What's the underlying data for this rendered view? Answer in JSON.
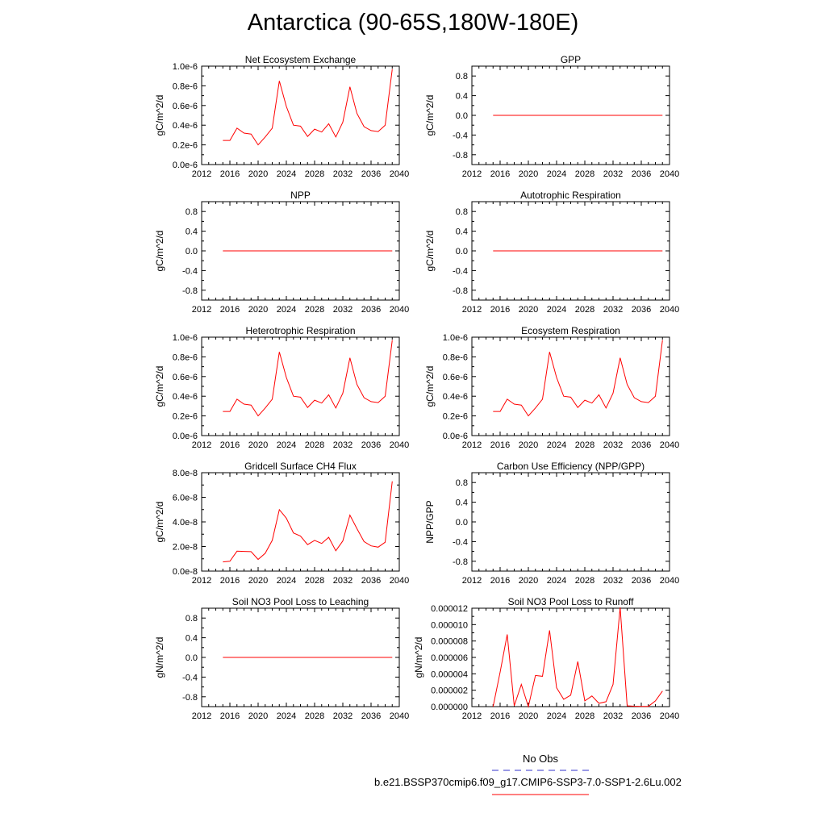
{
  "title": "Antarctica (90-65S,180W-180E)",
  "legend": {
    "obs_label": "No Obs",
    "obs_color": "#3333cc",
    "model_label": "b.e21.BSSP370cmip6.f09_g17.CMIP6-SSP3-7.0-SSP1-2.6Lu.002",
    "model_color": "#ff0000"
  },
  "chart_data": [
    {
      "type": "line",
      "title": "Net Ecosystem Exchange",
      "ylabel": "gC/m^2/d",
      "xlim": [
        2012,
        2040
      ],
      "xticks": [
        2012,
        2016,
        2020,
        2024,
        2028,
        2032,
        2036,
        2040
      ],
      "ylim": [
        0,
        1e-06
      ],
      "yticks": [
        0,
        2e-07,
        4e-07,
        6e-07,
        8e-07,
        1e-06
      ],
      "ytick_labels": [
        "0.0e-6",
        "0.2e-6",
        "0.4e-6",
        "0.6e-6",
        "0.8e-6",
        "1.0e-6"
      ],
      "x": [
        2015,
        2016,
        2017,
        2018,
        2019,
        2020,
        2021,
        2022,
        2023,
        2024,
        2025,
        2026,
        2027,
        2028,
        2029,
        2030,
        2031,
        2032,
        2033,
        2034,
        2035,
        2036,
        2037,
        2038,
        2039
      ],
      "values": [
        2.45e-07,
        2.45e-07,
        3.7e-07,
        3.2e-07,
        3.1e-07,
        2e-07,
        2.8e-07,
        3.7e-07,
        8.5e-07,
        5.9e-07,
        4e-07,
        3.9e-07,
        2.85e-07,
        3.6e-07,
        3.3e-07,
        4.15e-07,
        2.8e-07,
        4.3e-07,
        7.9e-07,
        5.2e-07,
        3.85e-07,
        3.45e-07,
        3.35e-07,
        4e-07,
        9.7e-07
      ]
    },
    {
      "type": "line",
      "title": "GPP",
      "ylabel": "gC/m^2/d",
      "xlim": [
        2012,
        2040
      ],
      "xticks": [
        2012,
        2016,
        2020,
        2024,
        2028,
        2032,
        2036,
        2040
      ],
      "ylim": [
        -1.0,
        1.0
      ],
      "yticks": [
        -0.8,
        -0.4,
        0.0,
        0.4,
        0.8
      ],
      "ytick_labels": [
        "-0.8",
        "-0.4",
        "0.0",
        "0.4",
        "0.8"
      ],
      "x": [
        2015,
        2016,
        2017,
        2018,
        2019,
        2020,
        2021,
        2022,
        2023,
        2024,
        2025,
        2026,
        2027,
        2028,
        2029,
        2030,
        2031,
        2032,
        2033,
        2034,
        2035,
        2036,
        2037,
        2038,
        2039
      ],
      "values": [
        0,
        0,
        0,
        0,
        0,
        0,
        0,
        0,
        0,
        0,
        0,
        0,
        0,
        0,
        0,
        0,
        0,
        0,
        0,
        0,
        0,
        0,
        0,
        0,
        0
      ]
    },
    {
      "type": "line",
      "title": "NPP",
      "ylabel": "gC/m^2/d",
      "xlim": [
        2012,
        2040
      ],
      "xticks": [
        2012,
        2016,
        2020,
        2024,
        2028,
        2032,
        2036,
        2040
      ],
      "ylim": [
        -1.0,
        1.0
      ],
      "yticks": [
        -0.8,
        -0.4,
        0.0,
        0.4,
        0.8
      ],
      "ytick_labels": [
        "-0.8",
        "-0.4",
        "0.0",
        "0.4",
        "0.8"
      ],
      "x": [
        2015,
        2016,
        2017,
        2018,
        2019,
        2020,
        2021,
        2022,
        2023,
        2024,
        2025,
        2026,
        2027,
        2028,
        2029,
        2030,
        2031,
        2032,
        2033,
        2034,
        2035,
        2036,
        2037,
        2038,
        2039
      ],
      "values": [
        0,
        0,
        0,
        0,
        0,
        0,
        0,
        0,
        0,
        0,
        0,
        0,
        0,
        0,
        0,
        0,
        0,
        0,
        0,
        0,
        0,
        0,
        0,
        0,
        0
      ]
    },
    {
      "type": "line",
      "title": "Autotrophic Respiration",
      "ylabel": "gC/m^2/d",
      "xlim": [
        2012,
        2040
      ],
      "xticks": [
        2012,
        2016,
        2020,
        2024,
        2028,
        2032,
        2036,
        2040
      ],
      "ylim": [
        -1.0,
        1.0
      ],
      "yticks": [
        -0.8,
        -0.4,
        0.0,
        0.4,
        0.8
      ],
      "ytick_labels": [
        "-0.8",
        "-0.4",
        "0.0",
        "0.4",
        "0.8"
      ],
      "x": [
        2015,
        2016,
        2017,
        2018,
        2019,
        2020,
        2021,
        2022,
        2023,
        2024,
        2025,
        2026,
        2027,
        2028,
        2029,
        2030,
        2031,
        2032,
        2033,
        2034,
        2035,
        2036,
        2037,
        2038,
        2039
      ],
      "values": [
        0,
        0,
        0,
        0,
        0,
        0,
        0,
        0,
        0,
        0,
        0,
        0,
        0,
        0,
        0,
        0,
        0,
        0,
        0,
        0,
        0,
        0,
        0,
        0,
        0
      ]
    },
    {
      "type": "line",
      "title": "Heterotrophic Respiration",
      "ylabel": "gC/m^2/d",
      "xlim": [
        2012,
        2040
      ],
      "xticks": [
        2012,
        2016,
        2020,
        2024,
        2028,
        2032,
        2036,
        2040
      ],
      "ylim": [
        0,
        1e-06
      ],
      "yticks": [
        0,
        2e-07,
        4e-07,
        6e-07,
        8e-07,
        1e-06
      ],
      "ytick_labels": [
        "0.0e-6",
        "0.2e-6",
        "0.4e-6",
        "0.6e-6",
        "0.8e-6",
        "1.0e-6"
      ],
      "x": [
        2015,
        2016,
        2017,
        2018,
        2019,
        2020,
        2021,
        2022,
        2023,
        2024,
        2025,
        2026,
        2027,
        2028,
        2029,
        2030,
        2031,
        2032,
        2033,
        2034,
        2035,
        2036,
        2037,
        2038,
        2039
      ],
      "values": [
        2.45e-07,
        2.45e-07,
        3.7e-07,
        3.2e-07,
        3.1e-07,
        2e-07,
        2.8e-07,
        3.7e-07,
        8.5e-07,
        5.9e-07,
        4e-07,
        3.9e-07,
        2.85e-07,
        3.6e-07,
        3.3e-07,
        4.15e-07,
        2.8e-07,
        4.3e-07,
        7.9e-07,
        5.2e-07,
        3.85e-07,
        3.45e-07,
        3.35e-07,
        4e-07,
        9.7e-07
      ]
    },
    {
      "type": "line",
      "title": "Ecosystem Respiration",
      "ylabel": "gC/m^2/d",
      "xlim": [
        2012,
        2040
      ],
      "xticks": [
        2012,
        2016,
        2020,
        2024,
        2028,
        2032,
        2036,
        2040
      ],
      "ylim": [
        0,
        1e-06
      ],
      "yticks": [
        0,
        2e-07,
        4e-07,
        6e-07,
        8e-07,
        1e-06
      ],
      "ytick_labels": [
        "0.0e-6",
        "0.2e-6",
        "0.4e-6",
        "0.6e-6",
        "0.8e-6",
        "1.0e-6"
      ],
      "x": [
        2015,
        2016,
        2017,
        2018,
        2019,
        2020,
        2021,
        2022,
        2023,
        2024,
        2025,
        2026,
        2027,
        2028,
        2029,
        2030,
        2031,
        2032,
        2033,
        2034,
        2035,
        2036,
        2037,
        2038,
        2039
      ],
      "values": [
        2.45e-07,
        2.45e-07,
        3.7e-07,
        3.2e-07,
        3.1e-07,
        2e-07,
        2.8e-07,
        3.7e-07,
        8.5e-07,
        5.9e-07,
        4e-07,
        3.9e-07,
        2.85e-07,
        3.6e-07,
        3.3e-07,
        4.15e-07,
        2.8e-07,
        4.3e-07,
        7.9e-07,
        5.2e-07,
        3.85e-07,
        3.45e-07,
        3.35e-07,
        4e-07,
        9.7e-07
      ]
    },
    {
      "type": "line",
      "title": "Gridcell Surface CH4 Flux",
      "ylabel": "gC/m^2/d",
      "xlim": [
        2012,
        2040
      ],
      "xticks": [
        2012,
        2016,
        2020,
        2024,
        2028,
        2032,
        2036,
        2040
      ],
      "ylim": [
        0,
        8e-08
      ],
      "yticks": [
        0,
        2e-08,
        4e-08,
        6e-08,
        8e-08
      ],
      "ytick_labels": [
        "0.0e-8",
        "2.0e-8",
        "4.0e-8",
        "6.0e-8",
        "8.0e-8"
      ],
      "x": [
        2015,
        2016,
        2017,
        2018,
        2019,
        2020,
        2021,
        2022,
        2023,
        2024,
        2025,
        2026,
        2027,
        2028,
        2029,
        2030,
        2031,
        2032,
        2033,
        2034,
        2035,
        2036,
        2037,
        2038,
        2039
      ],
      "values": [
        7.5e-09,
        8e-09,
        1.62e-08,
        1.6e-08,
        1.58e-08,
        9.5e-09,
        1.45e-08,
        2.5e-08,
        5e-08,
        4.3e-08,
        3.1e-08,
        2.85e-08,
        2.15e-08,
        2.5e-08,
        2.25e-08,
        2.75e-08,
        1.65e-08,
        2.45e-08,
        4.55e-08,
        3.45e-08,
        2.4e-08,
        2.05e-08,
        1.95e-08,
        2.35e-08,
        7.3e-08
      ]
    },
    {
      "type": "line",
      "title": "Carbon Use Efficiency (NPP/GPP)",
      "ylabel": "NPP/GPP",
      "xlim": [
        2012,
        2040
      ],
      "xticks": [
        2012,
        2016,
        2020,
        2024,
        2028,
        2032,
        2036,
        2040
      ],
      "ylim": [
        -1.0,
        1.0
      ],
      "yticks": [
        -0.8,
        -0.4,
        0.0,
        0.4,
        0.8
      ],
      "ytick_labels": [
        "-0.8",
        "-0.4",
        "0.0",
        "0.4",
        "0.8"
      ],
      "x": [],
      "values": []
    },
    {
      "type": "line",
      "title": "Soil NO3 Pool Loss to Leaching",
      "ylabel": "gN/m^2/d",
      "xlim": [
        2012,
        2040
      ],
      "xticks": [
        2012,
        2016,
        2020,
        2024,
        2028,
        2032,
        2036,
        2040
      ],
      "ylim": [
        -1.0,
        1.0
      ],
      "yticks": [
        -0.8,
        -0.4,
        0.0,
        0.4,
        0.8
      ],
      "ytick_labels": [
        "-0.8",
        "-0.4",
        "0.0",
        "0.4",
        "0.8"
      ],
      "x": [
        2015,
        2016,
        2017,
        2018,
        2019,
        2020,
        2021,
        2022,
        2023,
        2024,
        2025,
        2026,
        2027,
        2028,
        2029,
        2030,
        2031,
        2032,
        2033,
        2034,
        2035,
        2036,
        2037,
        2038,
        2039
      ],
      "values": [
        0,
        0,
        0,
        0,
        0,
        0,
        0,
        0,
        0,
        0,
        0,
        0,
        0,
        0,
        0,
        0,
        0,
        0,
        0,
        0,
        0,
        0,
        0,
        0,
        0
      ]
    },
    {
      "type": "line",
      "title": "Soil NO3 Pool Loss to Runoff",
      "ylabel": "gN/m^2/d",
      "xlim": [
        2012,
        2040
      ],
      "xticks": [
        2012,
        2016,
        2020,
        2024,
        2028,
        2032,
        2036,
        2040
      ],
      "ylim": [
        0,
        1.2e-05
      ],
      "yticks": [
        0,
        2e-06,
        4e-06,
        6e-06,
        8e-06,
        1e-05,
        1.2e-05
      ],
      "ytick_labels": [
        "0.000000",
        "0.000002",
        "0.000004",
        "0.000006",
        "0.000008",
        "0.000010",
        "0.000012"
      ],
      "x": [
        2015,
        2016,
        2017,
        2018,
        2019,
        2020,
        2021,
        2022,
        2023,
        2024,
        2025,
        2026,
        2027,
        2028,
        2029,
        2030,
        2031,
        2032,
        2033,
        2034,
        2035,
        2036,
        2037,
        2038,
        2039
      ],
      "values": [
        0,
        4.2e-06,
        8.8e-06,
        1e-07,
        2.7e-06,
        0,
        3.8e-06,
        3.7e-06,
        9.3e-06,
        2.3e-06,
        9e-07,
        1.4e-06,
        5.5e-06,
        7e-07,
        1.3e-06,
        4e-07,
        6e-07,
        2.7e-06,
        1.21e-05,
        1e-07,
        5e-08,
        2e-08,
        3e-08,
        7e-07,
        1.9e-06
      ]
    }
  ]
}
